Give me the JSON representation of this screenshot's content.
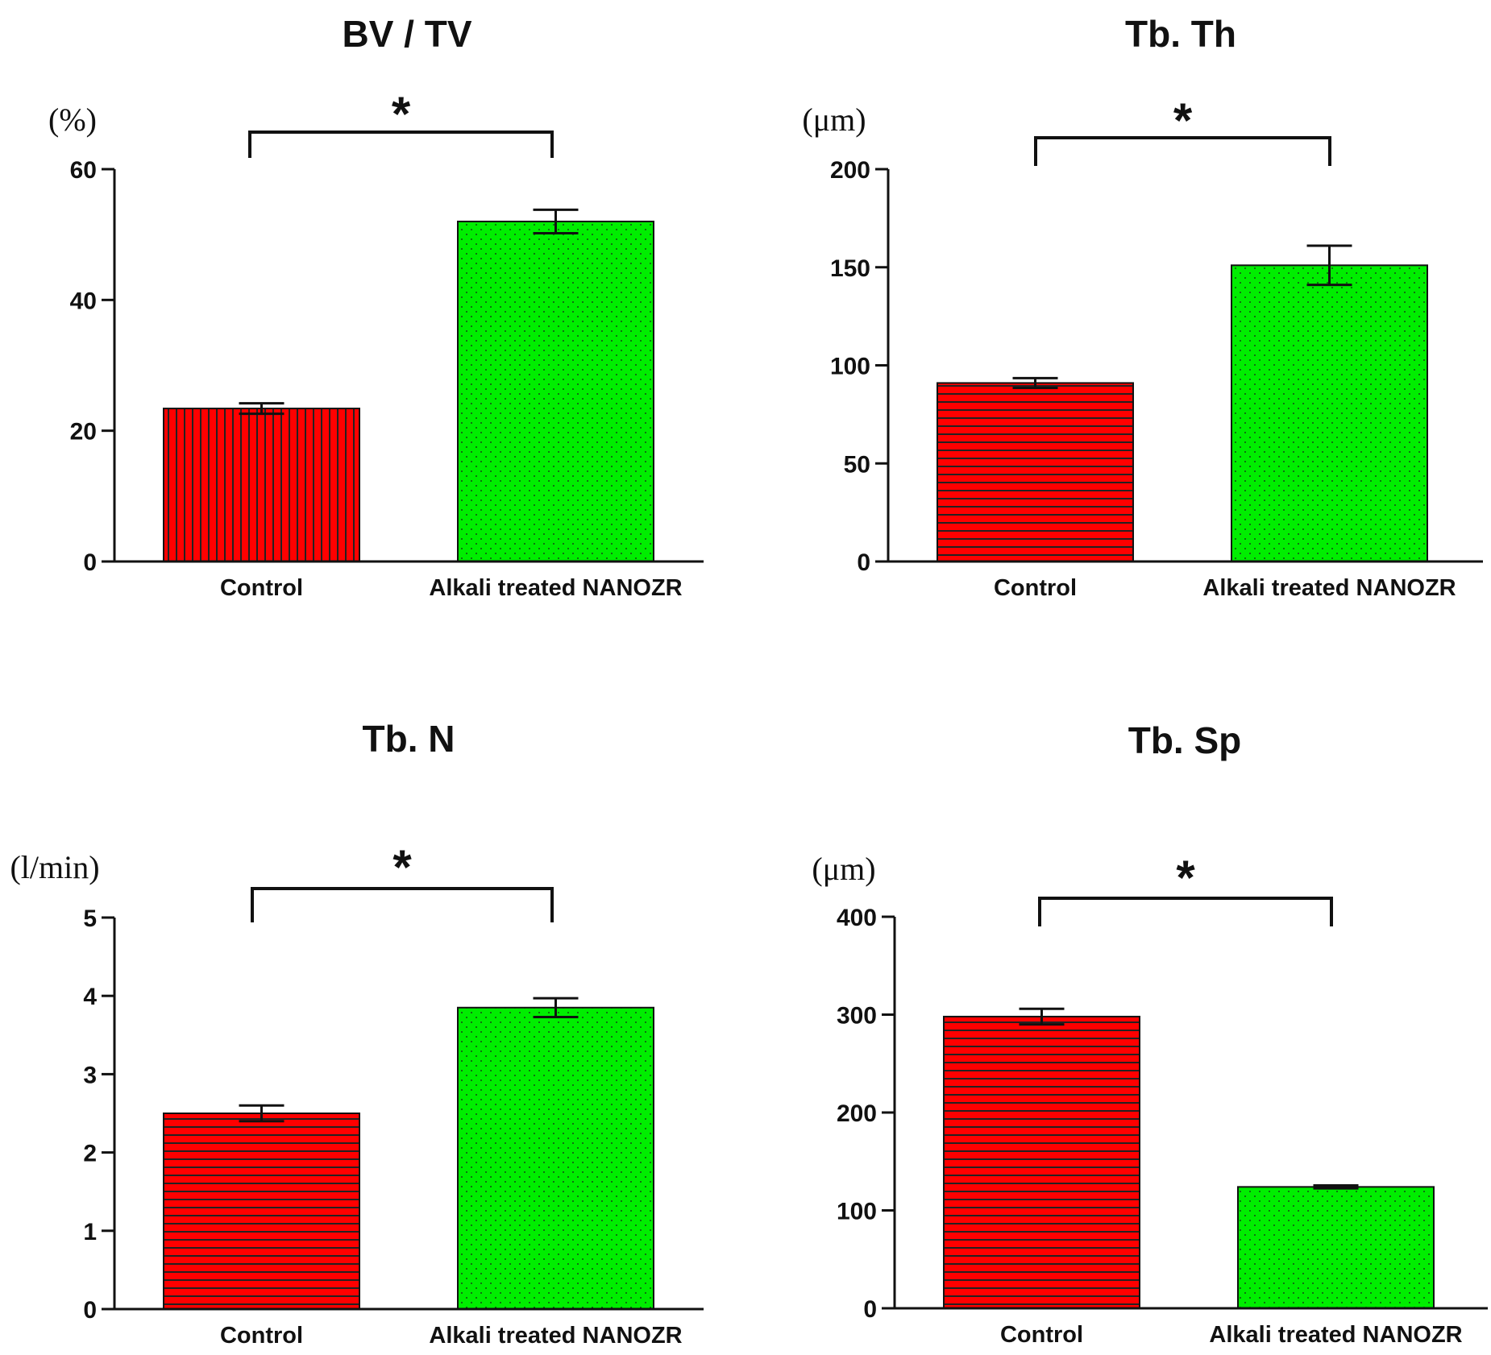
{
  "colors": {
    "control_fill": "#ff0000",
    "treated_fill": "#00ee00",
    "axis": "#111111",
    "stripe": "#222222",
    "dot": "#1a1a1a"
  },
  "chart_data": [
    {
      "type": "bar",
      "title": "BV / TV",
      "ylabel": "(%)",
      "categories": [
        "Control",
        "Alkali treated NANOZR"
      ],
      "values": [
        23.4,
        52.0
      ],
      "errors": [
        0.8,
        1.8
      ],
      "ylim": [
        0,
        60
      ],
      "yticks": [
        0,
        20,
        40,
        60
      ],
      "patterns": [
        "vertical-stripes",
        "dots"
      ],
      "significance": "*"
    },
    {
      "type": "bar",
      "title": "Tb. Th",
      "ylabel": "(μm)",
      "categories": [
        "Control",
        "Alkali treated NANOZR"
      ],
      "values": [
        91,
        151
      ],
      "errors": [
        2.5,
        10
      ],
      "ylim": [
        0,
        200
      ],
      "yticks": [
        0,
        50,
        100,
        150,
        200
      ],
      "patterns": [
        "horizontal-stripes",
        "dots"
      ],
      "significance": "*"
    },
    {
      "type": "bar",
      "title": "Tb. N",
      "ylabel": "(l/min)",
      "categories": [
        "Control",
        "Alkali treated NANOZR"
      ],
      "values": [
        2.5,
        3.85
      ],
      "errors": [
        0.1,
        0.12
      ],
      "ylim": [
        0,
        5
      ],
      "yticks": [
        0,
        1,
        2,
        3,
        4,
        5
      ],
      "patterns": [
        "horizontal-stripes",
        "dots"
      ],
      "significance": "*"
    },
    {
      "type": "bar",
      "title": "Tb. Sp",
      "ylabel": "(μm)",
      "categories": [
        "Control",
        "Alkali treated NANOZR"
      ],
      "values": [
        298,
        124
      ],
      "errors": [
        8,
        1.5
      ],
      "ylim": [
        0,
        400
      ],
      "yticks": [
        0,
        100,
        200,
        300,
        400
      ],
      "patterns": [
        "horizontal-stripes",
        "dots"
      ],
      "significance": "*"
    }
  ]
}
